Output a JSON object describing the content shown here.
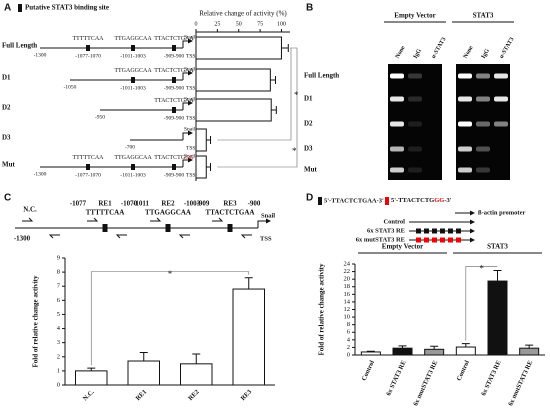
{
  "panel_labels": [
    "A",
    "B",
    "C",
    "D"
  ],
  "chart_data": [
    {
      "type": "bar",
      "orientation": "horizontal",
      "xlabel": "Relative change of activity (%)",
      "categories": [
        "Full Length",
        "D1",
        "D2",
        "D3",
        "Mut"
      ],
      "values": [
        100,
        87,
        88,
        12,
        12
      ],
      "errors": [
        8,
        6,
        6,
        5,
        5
      ],
      "color": "#ffffff",
      "xlim": [
        0,
        110
      ],
      "xticks": [
        0,
        25,
        50,
        75,
        100
      ],
      "significance": [
        "*",
        "*"
      ]
    },
    {
      "type": "bar",
      "ylabel": "Fold of relative change activity",
      "categories": [
        "N.C.",
        "RE1",
        "RE2",
        "RE3"
      ],
      "values": [
        1.0,
        1.7,
        1.5,
        6.8
      ],
      "errors": [
        0.2,
        0.6,
        0.7,
        0.8
      ],
      "color": "#ffffff",
      "ylim": [
        0,
        9
      ],
      "yticks": [
        0,
        1,
        2,
        3,
        4,
        5,
        6,
        7,
        8,
        9
      ],
      "significance": [
        "*"
      ]
    },
    {
      "type": "bar",
      "ylabel": "Fold of relative change activity",
      "groups": [
        "Empty Vector",
        "STAT3"
      ],
      "categories": [
        "Control",
        "6x STAT3 RE",
        "6x mutSTAT3 RE",
        "Control",
        "6x STAT3 RE",
        "6x mutSTAT3 RE"
      ],
      "values": [
        0.8,
        1.8,
        1.5,
        2.1,
        19.5,
        1.8
      ],
      "errors": [
        0.2,
        0.6,
        0.8,
        0.9,
        2.8,
        0.8
      ],
      "colors": [
        "#ffffff",
        "#111111",
        "#999999",
        "#ffffff",
        "#111111",
        "#999999"
      ],
      "ylim": [
        0,
        24
      ],
      "yticks": [
        0,
        2,
        4,
        6,
        8,
        10,
        12,
        14,
        16,
        18,
        20,
        22,
        24
      ],
      "significance": [
        "*"
      ]
    }
  ],
  "panel_a": {
    "legend": "Putative STAT3 binding site",
    "gene": "Snail",
    "tss": "TSS",
    "constructs": [
      {
        "start": "-1300",
        "sites": [
          {
            "seq": "TTTTTCAA",
            "pos": "-1077-1070"
          },
          {
            "seq": "TTGAGGCAA",
            "pos": "-1011-1003"
          },
          {
            "seq": "TTACTCTGAA",
            "pos": "-909-900"
          }
        ]
      },
      {
        "start": "-1050",
        "sites": [
          {
            "seq": "TTGAGGCAA",
            "pos": "-1011-1003"
          },
          {
            "seq": "TTACTCTGAA",
            "pos": "-909-900"
          }
        ]
      },
      {
        "start": "-950",
        "sites": [
          {
            "seq": "TTACTCTGAA",
            "pos": "-909-900"
          }
        ]
      },
      {
        "start": "-700",
        "sites": []
      },
      {
        "start": "-1300",
        "sites": [
          {
            "seq": "TTTTTCAA",
            "pos": "-1077-1070"
          },
          {
            "seq": "TTGAGGCAA",
            "pos": "-1011-1003"
          },
          {
            "seq": "TTACTCTG",
            "mutated": "GG",
            "pos": "-909-900"
          }
        ]
      }
    ]
  },
  "panel_b": {
    "groups": [
      "Empty Vector",
      "STAT3"
    ],
    "lanes": [
      "None",
      "IgG",
      "α-STAT3"
    ],
    "rows": [
      "Full Length",
      "D1",
      "D2",
      "D3",
      "Mut"
    ]
  },
  "panel_c": {
    "control": "N.C.",
    "start": "-1300",
    "gene": "Snail",
    "tss": "TSS",
    "elements": [
      {
        "name": "RE1",
        "left": "-1077",
        "right": "-1070",
        "seq": "TTTTTCAA"
      },
      {
        "name": "RE2",
        "left": "-1011",
        "right": "-1003",
        "seq": "TTGAGGCAA"
      },
      {
        "name": "RE3",
        "left": "-909",
        "right": "-900",
        "seq": "TTACTCTGAA"
      }
    ]
  },
  "panel_d": {
    "wild_type": "5'-TTACTCTGAA-3'",
    "mutant": [
      "5'-TTACTCTG",
      "GG",
      "-3'"
    ],
    "promoter": "ß-actin promoter",
    "constructs": [
      "Control",
      "6x STAT3 RE",
      "6x mutSTAT3 RE"
    ]
  }
}
